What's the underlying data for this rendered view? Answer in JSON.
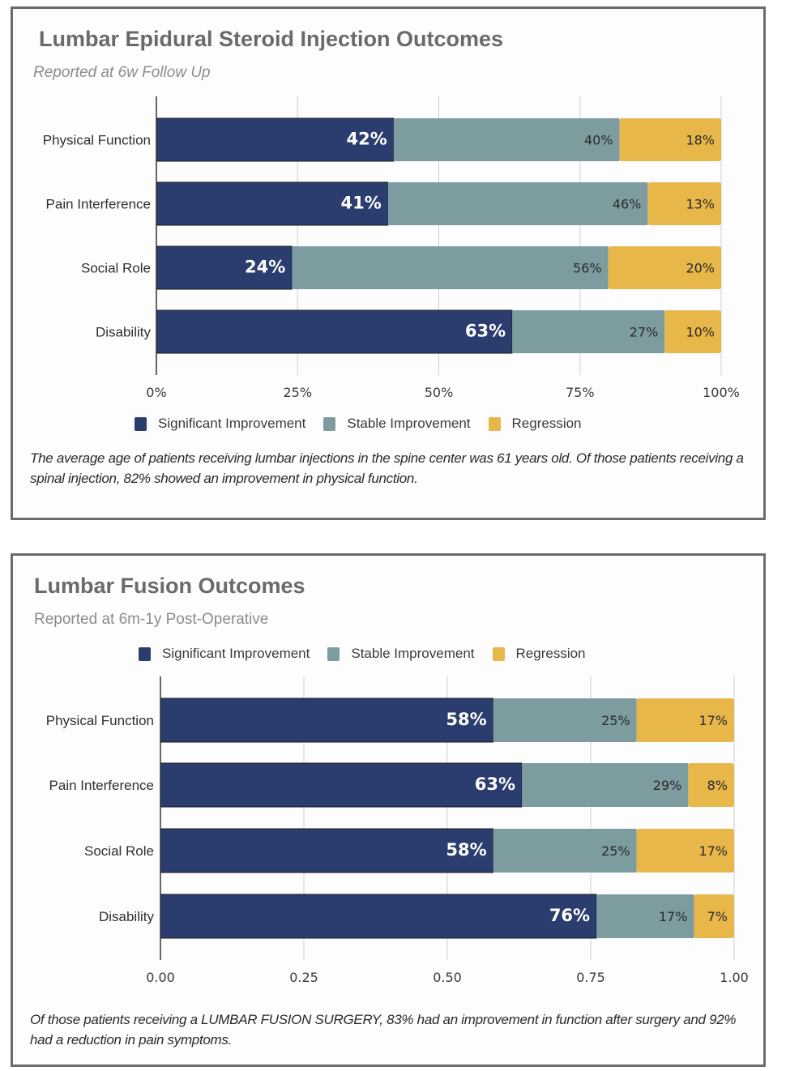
{
  "colors": {
    "significant": "#2b3c6e",
    "stable": "#7d9ca0",
    "regression": "#e8b74a",
    "grid": "#cfcfcf",
    "axis": "#333333"
  },
  "chart_data": [
    {
      "type": "bar",
      "orientation": "horizontal",
      "stacked": true,
      "title": "Lumbar Epidural Steroid Injection Outcomes",
      "subtitle": "Reported at 6w Follow Up",
      "categories": [
        "Physical Function",
        "Pain Interference",
        "Social Role",
        "Disability"
      ],
      "series": [
        {
          "name": "Significant Improvement",
          "key": "significant",
          "values": [
            42,
            41,
            24,
            63
          ],
          "labels": [
            "42%",
            "41%",
            "24%",
            "63%"
          ]
        },
        {
          "name": "Stable Improvement",
          "key": "stable",
          "values": [
            40,
            46,
            56,
            27
          ],
          "labels": [
            "40%",
            "46%",
            "56%",
            "27%"
          ]
        },
        {
          "name": "Regression",
          "key": "regression",
          "values": [
            18,
            13,
            20,
            10
          ],
          "labels": [
            "18%",
            "13%",
            "20%",
            "10%"
          ]
        }
      ],
      "xlabel": "",
      "ylabel": "",
      "xlim": [
        0,
        100
      ],
      "xticks": [
        0,
        25,
        50,
        75,
        100
      ],
      "xtick_labels": [
        "0%",
        "25%",
        "50%",
        "75%",
        "100%"
      ],
      "grid": true,
      "legend_position": "bottom",
      "caption": "The average age of patients receiving lumbar injections in the spine center was 61 years old. Of those patients receiving a spinal injection, 82% showed an improvement in physical function."
    },
    {
      "type": "bar",
      "orientation": "horizontal",
      "stacked": true,
      "title": "Lumbar Fusion Outcomes",
      "subtitle": "Reported at 6m-1y Post-Operative",
      "categories": [
        "Physical Function",
        "Pain Interference",
        "Social Role",
        "Disability"
      ],
      "series": [
        {
          "name": "Significant Improvement",
          "key": "significant",
          "values": [
            58,
            63,
            58,
            76
          ],
          "labels": [
            "58%",
            "63%",
            "58%",
            "76%"
          ]
        },
        {
          "name": "Stable Improvement",
          "key": "stable",
          "values": [
            25,
            29,
            25,
            17
          ],
          "labels": [
            "25%",
            "29%",
            "25%",
            "17%"
          ]
        },
        {
          "name": "Regression",
          "key": "regression",
          "values": [
            17,
            8,
            17,
            7
          ],
          "labels": [
            "17%",
            "8%",
            "17%",
            "7%"
          ]
        }
      ],
      "xlabel": "",
      "ylabel": "",
      "xlim": [
        0,
        1
      ],
      "xticks": [
        0,
        0.25,
        0.5,
        0.75,
        1
      ],
      "xtick_labels": [
        "0.00",
        "0.25",
        "0.50",
        "0.75",
        "1.00"
      ],
      "grid": true,
      "legend_position": "top",
      "caption": "Of those patients receiving a LUMBAR FUSION SURGERY, 83% had an improvement in function after surgery and 92% had a reduction in pain symptoms."
    }
  ]
}
